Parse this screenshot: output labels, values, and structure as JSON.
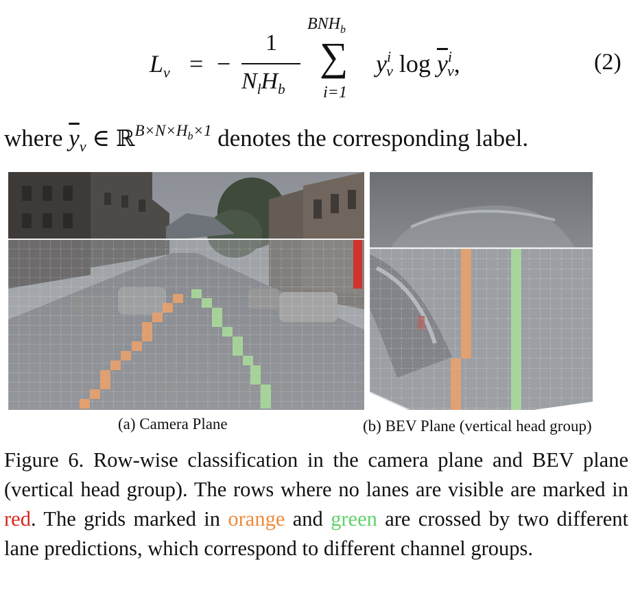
{
  "equation": {
    "lhs": "L",
    "lhs_sub": "v",
    "equals": "=",
    "minus": "−",
    "numerator": "1",
    "denominator": "N",
    "denominator_sub1": "l",
    "denominator_mid": "H",
    "denominator_sub2": "b",
    "sum_upper": "BNH",
    "sum_upper_sub": "b",
    "sum_symbol": "∑",
    "sum_lower": "i=1",
    "term_y": "y",
    "term_sup": "i",
    "term_sub": "v",
    "log": "log",
    "term_ybar": "y",
    "term2_sup": "i",
    "term2_sub": "v",
    "trailing": ",",
    "number": "(2)"
  },
  "where_line": {
    "word": "where",
    "ybar": "y",
    "ybar_sub": "v",
    "in": "∈",
    "R": "ℝ",
    "exponent": "B×N×H",
    "exponent_sub": "b",
    "exponent_tail": "×1",
    "rest": "denotes the corresponding label."
  },
  "figure": {
    "caption_a": "(a) Camera Plane",
    "caption_b": "(b) BEV Plane (vertical head group)",
    "colors": {
      "red": "#d8261f",
      "orange": "#e9a16d",
      "green": "#a9d99a"
    }
  },
  "caption": {
    "part1": "Figure 6. Row-wise classification in the camera plane and BEV plane (vertical head group).  The rows where no lanes are visible are marked in ",
    "red_word": "red",
    "part2": ". The grids marked in ",
    "orange_word": "orange",
    "part3": " and ",
    "green_word": "green",
    "part4": " are crossed by two different lane predictions, which correspond to different channel groups."
  }
}
